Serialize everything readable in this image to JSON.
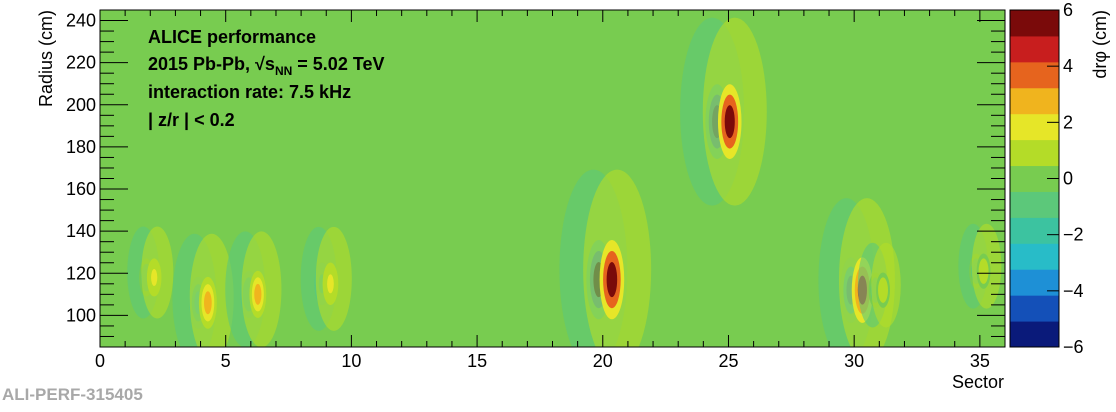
{
  "chart_data": {
    "type": "heatmap",
    "xlabel": "Sector",
    "ylabel": "Radius (cm)",
    "zlabel": "drφ (cm)",
    "xlim": [
      0,
      36
    ],
    "ylim": [
      85,
      245
    ],
    "zlim": [
      -6,
      6
    ],
    "x_ticks": [
      "0",
      "5",
      "10",
      "15",
      "20",
      "25",
      "30",
      "35"
    ],
    "y_ticks": [
      "100",
      "120",
      "140",
      "160",
      "180",
      "200",
      "220",
      "240"
    ],
    "z_ticks": [
      "−6",
      "−4",
      "−2",
      "0",
      "2",
      "4",
      "6"
    ],
    "background_value": 0,
    "features": [
      {
        "sector": 2.0,
        "radius": 118,
        "amplitude": 1.5
      },
      {
        "sector": 4.1,
        "radius": 106,
        "amplitude": 3.0
      },
      {
        "sector": 6.1,
        "radius": 110,
        "amplitude": 2.5
      },
      {
        "sector": 9.0,
        "radius": 115,
        "amplitude": 2.0
      },
      {
        "sector": 20.1,
        "radius": 117,
        "amplitude": 6.0
      },
      {
        "sector": 24.8,
        "radius": 192,
        "amplitude": 5.5
      },
      {
        "sector": 30.1,
        "radius": 112,
        "amplitude": 4.5
      },
      {
        "sector": 31.0,
        "radius": 112,
        "amplitude": 1.2
      },
      {
        "sector": 35.0,
        "radius": 121,
        "amplitude": 1.2
      }
    ],
    "colorbar_colors": [
      "#0a1a7a",
      "#1450b8",
      "#1e90d6",
      "#28bcc8",
      "#3cc3a0",
      "#5cc87a",
      "#78cc50",
      "#b4dc28",
      "#e6e628",
      "#f0b41e",
      "#e6641e",
      "#c81e1e",
      "#7a0a0a"
    ],
    "annotations": {
      "line1": "ALICE performance",
      "line2": "2015 Pb-Pb, √s",
      "line2_sub": "NN",
      "line2_end": " = 5.02 TeV",
      "line3": "interaction rate: 7.5 kHz",
      "line4": "| z/r | < 0.2"
    }
  },
  "watermark": "ALI-PERF-315405"
}
